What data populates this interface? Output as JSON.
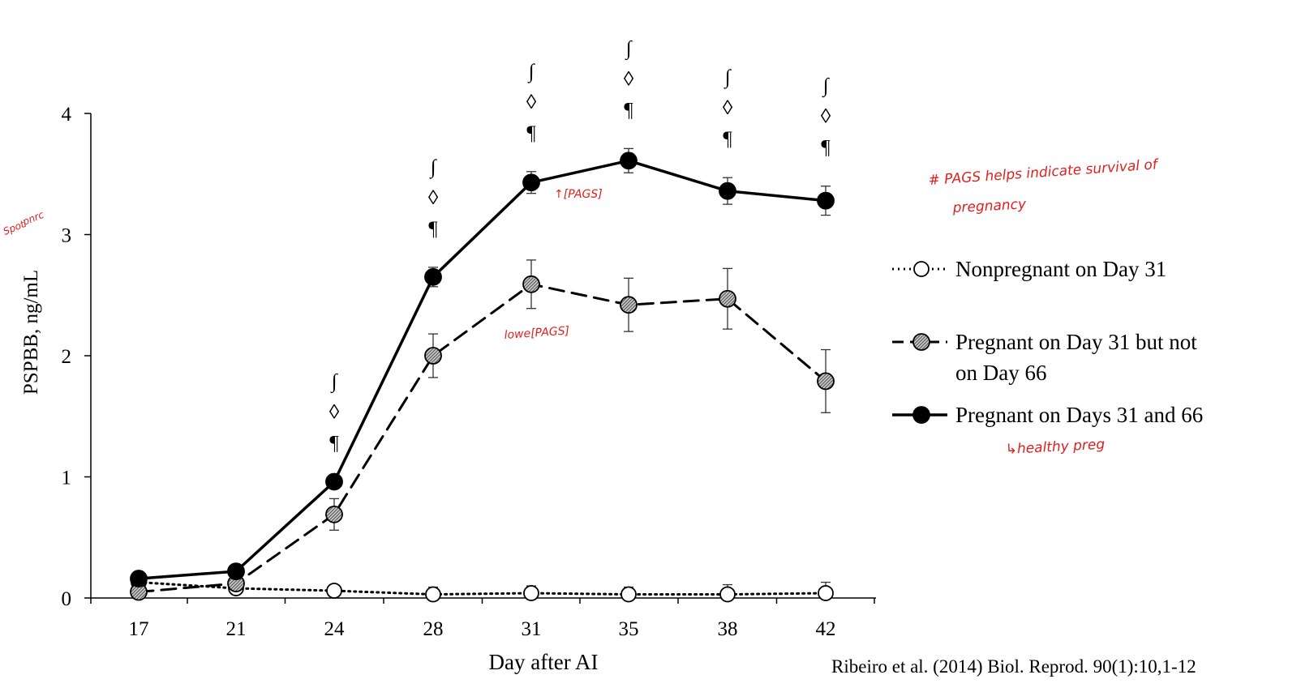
{
  "chart_data": {
    "type": "line",
    "xlabel": "Day after AI",
    "ylabel": "PSPBB, ng/mL",
    "ylim": [
      0,
      4
    ],
    "yticks": [
      "0",
      "1",
      "2",
      "3",
      "4"
    ],
    "categories": [
      "17",
      "21",
      "24",
      "28",
      "31",
      "35",
      "38",
      "42"
    ],
    "series": [
      {
        "name": "Nonpregnant on Day 31",
        "style": "dotted-open",
        "values": [
          0.13,
          0.08,
          0.06,
          0.03,
          0.04,
          0.03,
          0.03,
          0.04
        ],
        "errors": [
          0,
          0,
          0,
          0.06,
          0.06,
          0.06,
          0.08,
          0.09
        ]
      },
      {
        "name": "Pregnant on Day 31 but not on Day 66",
        "legend_lines": [
          "Pregnant on Day 31 but not",
          "on Day 66"
        ],
        "style": "dashed-hatched",
        "values": [
          0.05,
          0.12,
          0.69,
          2.0,
          2.59,
          2.42,
          2.47,
          1.79
        ],
        "errors": [
          0,
          0,
          0.13,
          0.18,
          0.2,
          0.22,
          0.25,
          0.26
        ]
      },
      {
        "name": "Pregnant on Days 31 and 66",
        "style": "solid-filled",
        "values": [
          0.16,
          0.22,
          0.96,
          2.65,
          3.43,
          3.61,
          3.36,
          3.28
        ],
        "errors": [
          0,
          0,
          0,
          0.08,
          0.09,
          0.1,
          0.11,
          0.12
        ]
      }
    ],
    "significance_markers": [
      {
        "day": "24",
        "symbols": [
          "∫",
          "◊",
          "¶"
        ]
      },
      {
        "day": "28",
        "symbols": [
          "∫",
          "◊",
          "¶"
        ]
      },
      {
        "day": "31",
        "symbols": [
          "∫",
          "◊",
          "¶"
        ]
      },
      {
        "day": "35",
        "symbols": [
          "∫",
          "◊",
          "¶"
        ]
      },
      {
        "day": "38",
        "symbols": [
          "∫",
          "◊",
          "¶"
        ]
      },
      {
        "day": "42",
        "symbols": [
          "∫",
          "◊",
          "¶"
        ]
      }
    ],
    "citation": "Ribeiro et al. (2014) Biol. Reprod. 90(1):10,1-12",
    "colors": {
      "ink": "#000000",
      "hatched_fill": "#9a9a9a",
      "annotation": "#e0201f"
    }
  },
  "annotations": {
    "pags_note_line1": "# PAGS helps indicate survival of",
    "pags_note_line2": "pregnancy",
    "high_pags": "↑[PAGS]",
    "low_pags": "lowe[PAGS]",
    "healthy": "↳healthy preg",
    "ylabel_scribble_line1": "Spot",
    "ylabel_scribble_line2": "pnrc"
  }
}
